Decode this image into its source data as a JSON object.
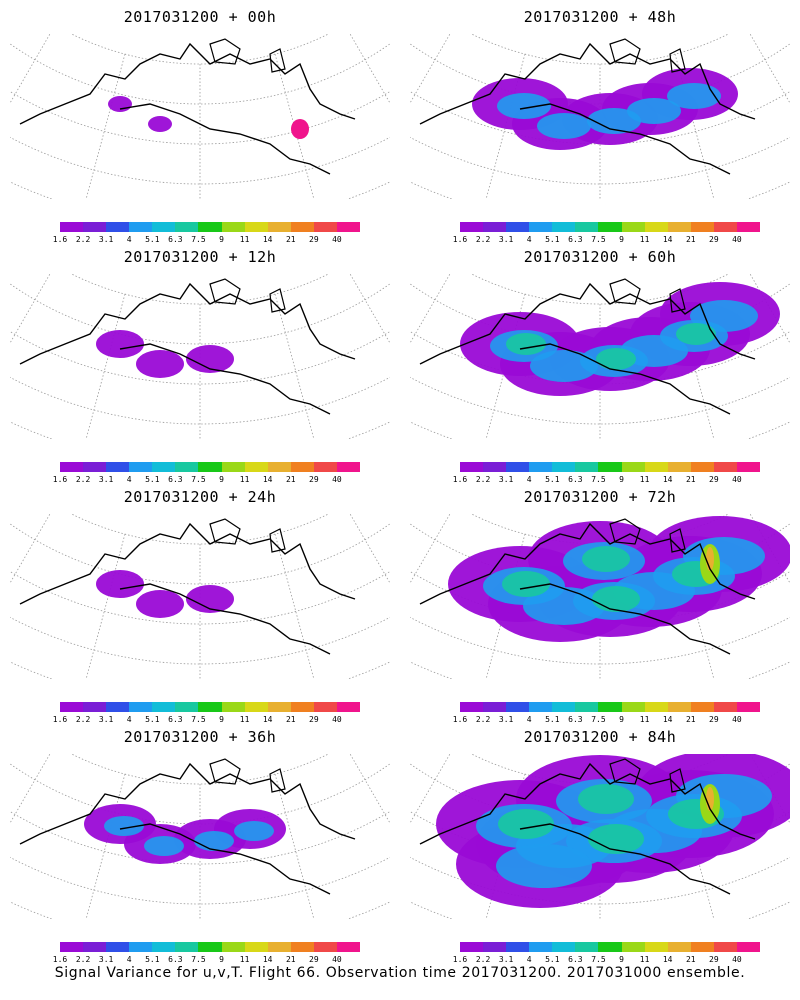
{
  "panels": [
    {
      "title": "2017031200  + 00h",
      "level": 0
    },
    {
      "title": "2017031200  + 48h",
      "level": 3
    },
    {
      "title": "2017031200  + 12h",
      "level": 1
    },
    {
      "title": "2017031200  + 60h",
      "level": 4
    },
    {
      "title": "2017031200  + 24h",
      "level": 1
    },
    {
      "title": "2017031200  + 72h",
      "level": 5
    },
    {
      "title": "2017031200  + 36h",
      "level": 2
    },
    {
      "title": "2017031200  + 84h",
      "level": 6
    }
  ],
  "colorbar": {
    "colors": [
      "#9a0ad6",
      "#7a1ed6",
      "#2f4fe8",
      "#1f9cf0",
      "#12bdd8",
      "#18c8a0",
      "#18c818",
      "#9ad818",
      "#d8d818",
      "#e8b030",
      "#f08020",
      "#f04848",
      "#f0148c"
    ],
    "labels": [
      "1.6",
      "2.2",
      "3.1",
      "4",
      "5.1",
      "6.3",
      "7.5",
      "9",
      "11",
      "14",
      "21",
      "29",
      "40"
    ]
  },
  "caption": "Signal Variance for u,v,T. Flight 66. Observation time 2017031200. 2017031000 ensemble."
}
